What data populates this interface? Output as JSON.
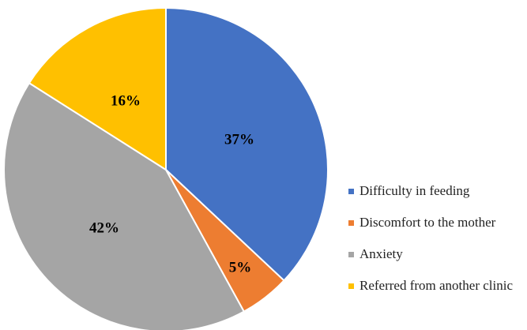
{
  "chart_data": {
    "type": "pie",
    "title": "",
    "categories": [
      "Difficulty in feeding",
      "Discomfort to the mother",
      "Anxiety",
      "Referred from another clinic"
    ],
    "values": [
      37,
      5,
      42,
      16
    ],
    "labels": [
      "37%",
      "5%",
      "42%",
      "16%"
    ],
    "colors": [
      "#4472C4",
      "#ED7D31",
      "#A5A5A5",
      "#FFC000"
    ],
    "legend": {
      "position": "right",
      "entries": [
        "Difficulty in feeding",
        "Discomfort to the mother",
        "Anxiety",
        "Referred from another clinic"
      ]
    }
  }
}
